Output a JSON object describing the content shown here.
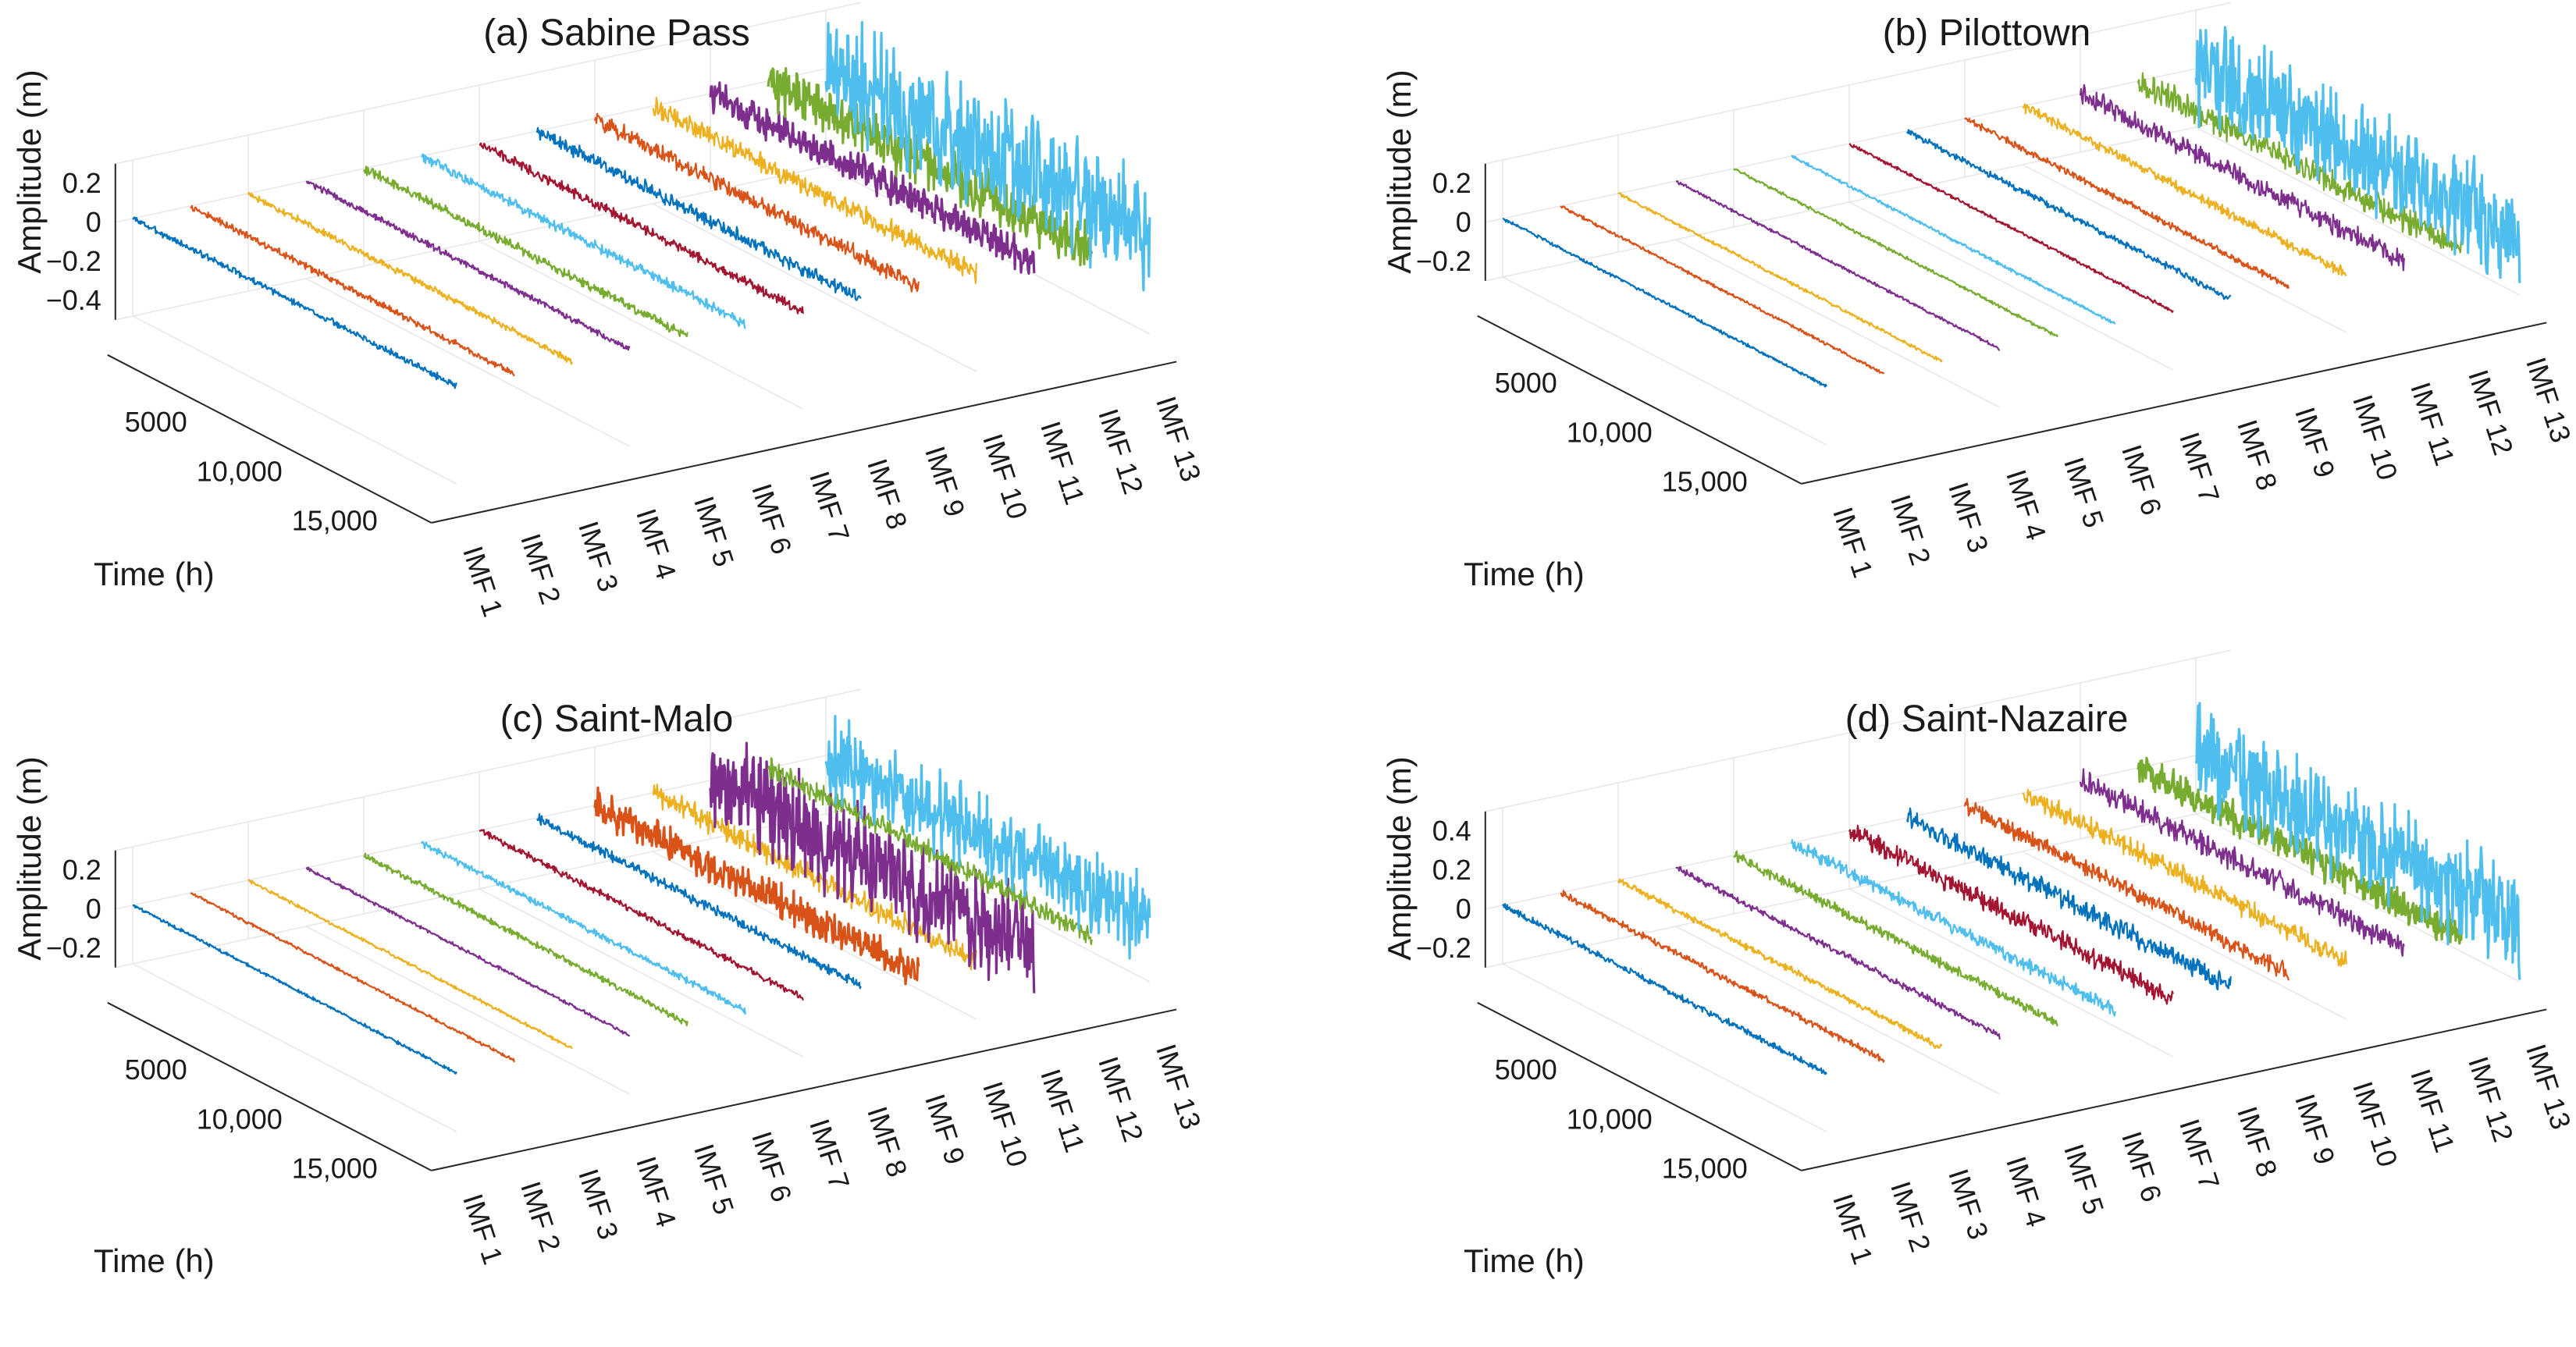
{
  "chart_data": [
    {
      "type": "line",
      "title": "(a) Sabine Pass",
      "zlabel": "Amplitude (m)",
      "ylabel": "Time (h)",
      "z_ticks": [
        "0.2",
        "0",
        "−0.2",
        "−0.4"
      ],
      "y_ticks": [
        "5000",
        "10,000",
        "15,000"
      ],
      "x_categories": [
        "IMF 1",
        "IMF 2",
        "IMF 3",
        "IMF 4",
        "IMF 5",
        "IMF 6",
        "IMF 7",
        "IMF 8",
        "IMF 9",
        "IMF 10",
        "IMF 11",
        "IMF 12",
        "IMF 13"
      ],
      "zlim": [
        -0.5,
        0.3
      ],
      "ylim": [
        0,
        17000
      ],
      "amplitudes": [
        0.02,
        0.02,
        0.02,
        0.02,
        0.03,
        0.03,
        0.03,
        0.04,
        0.05,
        0.06,
        0.1,
        0.15,
        0.35
      ]
    },
    {
      "type": "line",
      "title": "(b) Pilottown",
      "zlabel": "Amplitude (m)",
      "ylabel": "Time (h)",
      "z_ticks": [
        "0.2",
        "0",
        "−0.2"
      ],
      "y_ticks": [
        "5000",
        "10,000",
        "15,000"
      ],
      "x_categories": [
        "IMF 1",
        "IMF 2",
        "IMF 3",
        "IMF 4",
        "IMF 5",
        "IMF 6",
        "IMF 7",
        "IMF 8",
        "IMF 9",
        "IMF 10",
        "IMF 11",
        "IMF 12",
        "IMF 13"
      ],
      "zlim": [
        -0.3,
        0.3
      ],
      "ylim": [
        0,
        17000
      ],
      "amplitudes": [
        0.01,
        0.01,
        0.01,
        0.01,
        0.01,
        0.01,
        0.01,
        0.02,
        0.02,
        0.03,
        0.06,
        0.08,
        0.3
      ]
    },
    {
      "type": "line",
      "title": "(c) Saint-Malo",
      "zlabel": "Amplitude (m)",
      "ylabel": "Time (h)",
      "z_ticks": [
        "0.2",
        "0",
        "−0.2"
      ],
      "y_ticks": [
        "5000",
        "10,000",
        "15,000"
      ],
      "x_categories": [
        "IMF 1",
        "IMF 2",
        "IMF 3",
        "IMF 4",
        "IMF 5",
        "IMF 6",
        "IMF 7",
        "IMF 8",
        "IMF 9",
        "IMF 10",
        "IMF 11",
        "IMF 12",
        "IMF 13"
      ],
      "zlim": [
        -0.3,
        0.3
      ],
      "ylim": [
        0,
        17000
      ],
      "amplitudes": [
        0.01,
        0.01,
        0.01,
        0.01,
        0.02,
        0.02,
        0.02,
        0.03,
        0.1,
        0.07,
        0.3,
        0.06,
        0.25
      ]
    },
    {
      "type": "line",
      "title": "(d) Saint-Nazaire",
      "zlabel": "Amplitude (m)",
      "ylabel": "Time (h)",
      "z_ticks": [
        "0.4",
        "0.2",
        "0",
        "−0.2"
      ],
      "y_ticks": [
        "5000",
        "10,000",
        "15,000"
      ],
      "x_categories": [
        "IMF 1",
        "IMF 2",
        "IMF 3",
        "IMF 4",
        "IMF 5",
        "IMF 6",
        "IMF 7",
        "IMF 8",
        "IMF 9",
        "IMF 10",
        "IMF 11",
        "IMF 12",
        "IMF 13"
      ],
      "zlim": [
        -0.3,
        0.5
      ],
      "ylim": [
        0,
        17000
      ],
      "amplitudes": [
        0.02,
        0.02,
        0.02,
        0.02,
        0.03,
        0.04,
        0.06,
        0.06,
        0.05,
        0.06,
        0.07,
        0.1,
        0.3
      ]
    }
  ],
  "colors": {
    "series": [
      "#0072BD",
      "#D95319",
      "#EDB120",
      "#7E2F8E",
      "#77AC30",
      "#4DBEEE",
      "#A2142F"
    ],
    "axis": "#262626",
    "grid": "#e6e6e6",
    "background": "#ffffff"
  }
}
